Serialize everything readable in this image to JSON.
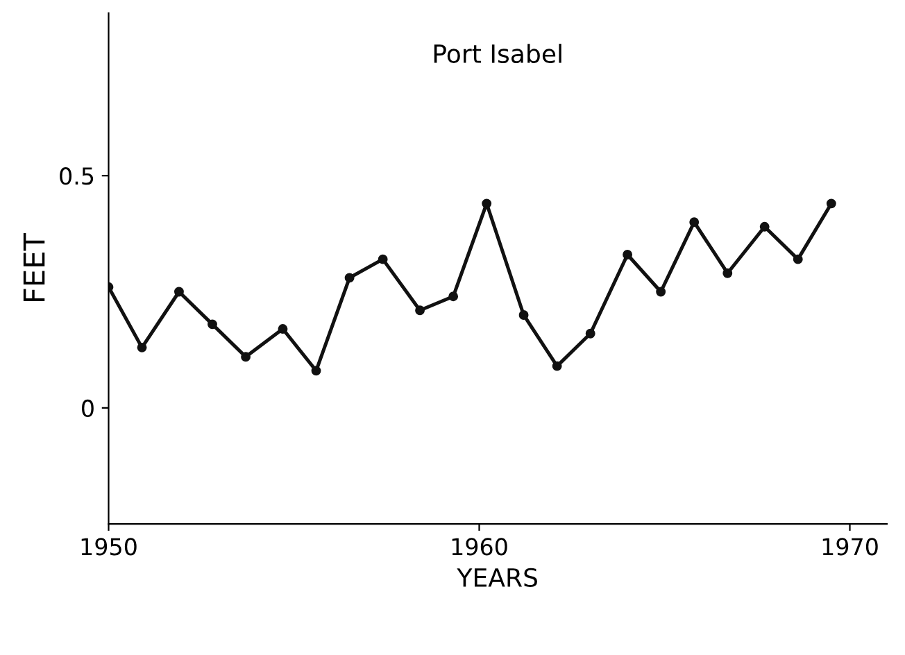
{
  "chart_data": {
    "type": "line",
    "title": "Port Isabel",
    "xlabel": "YEARS",
    "ylabel": "FEET",
    "x": [
      1950.0,
      1950.9,
      1951.9,
      1952.8,
      1953.7,
      1954.7,
      1955.6,
      1956.5,
      1957.4,
      1958.4,
      1959.3,
      1960.2,
      1961.2,
      1962.1,
      1963.0,
      1964.0,
      1964.9,
      1965.8,
      1966.7,
      1967.7,
      1968.6,
      1969.5
    ],
    "series": [
      {
        "color": "#111111",
        "values": [
          0.26,
          0.13,
          0.25,
          0.18,
          0.11,
          0.17,
          0.08,
          0.28,
          0.32,
          0.21,
          0.24,
          0.44,
          0.2,
          0.09,
          0.16,
          0.33,
          0.25,
          0.4,
          0.29,
          0.39,
          0.32,
          0.44
        ]
      }
    ],
    "xlim": [
      1950,
      1971
    ],
    "ylim": [
      -0.25,
      0.85
    ],
    "xticks": [
      1950,
      1960,
      1970
    ],
    "yticks": [
      0,
      0.5
    ],
    "marker": "circle",
    "line_style": "solid",
    "grid": false,
    "legend": false
  }
}
